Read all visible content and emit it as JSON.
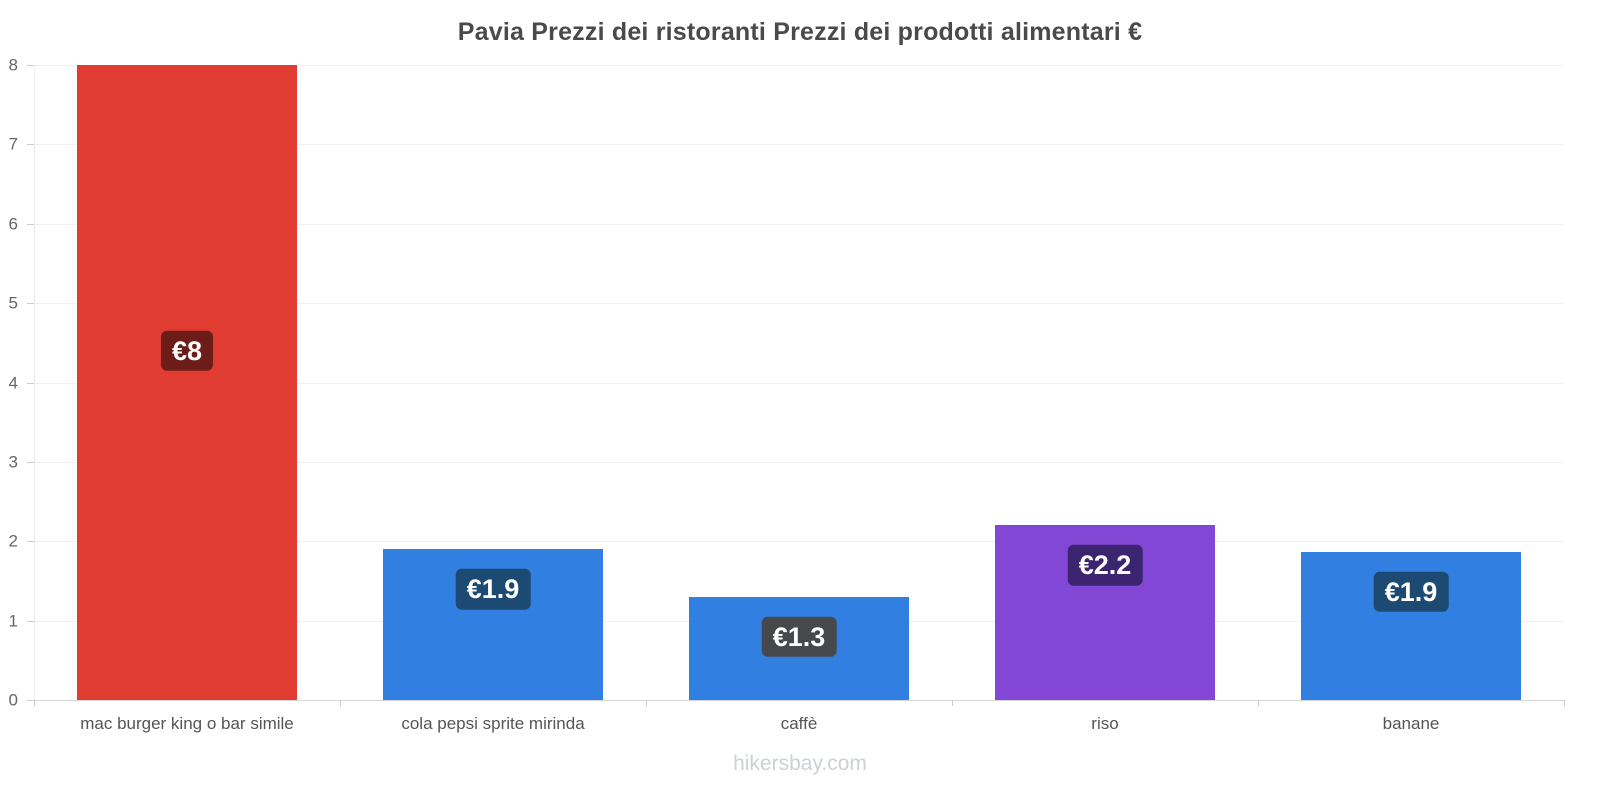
{
  "chart_data": {
    "type": "bar",
    "title": "Pavia Prezzi dei ristoranti Prezzi dei prodotti alimentari €",
    "categories": [
      "mac burger king o bar simile",
      "cola pepsi sprite mirinda",
      "caffè",
      "riso",
      "banane"
    ],
    "values": [
      8,
      1.9,
      1.3,
      2.2,
      1.87
    ],
    "value_labels": [
      "€8",
      "€1.9",
      "€1.3",
      "€2.2",
      "€1.9"
    ],
    "bar_colors": [
      "#e13c31",
      "#3180e1",
      "#3180e1",
      "#8247d5",
      "#3180e1"
    ],
    "label_box_colors": [
      "#6d1d18",
      "#1d4a73",
      "#46484c",
      "#3b2470",
      "#1d4a73"
    ],
    "currency": "€",
    "ylim": [
      0,
      8
    ],
    "yticks": [
      0,
      1,
      2,
      3,
      4,
      5,
      6,
      7,
      8
    ],
    "xlabel": "",
    "ylabel": "",
    "grid": true,
    "legend": false,
    "watermark": "hikersbay.com"
  }
}
